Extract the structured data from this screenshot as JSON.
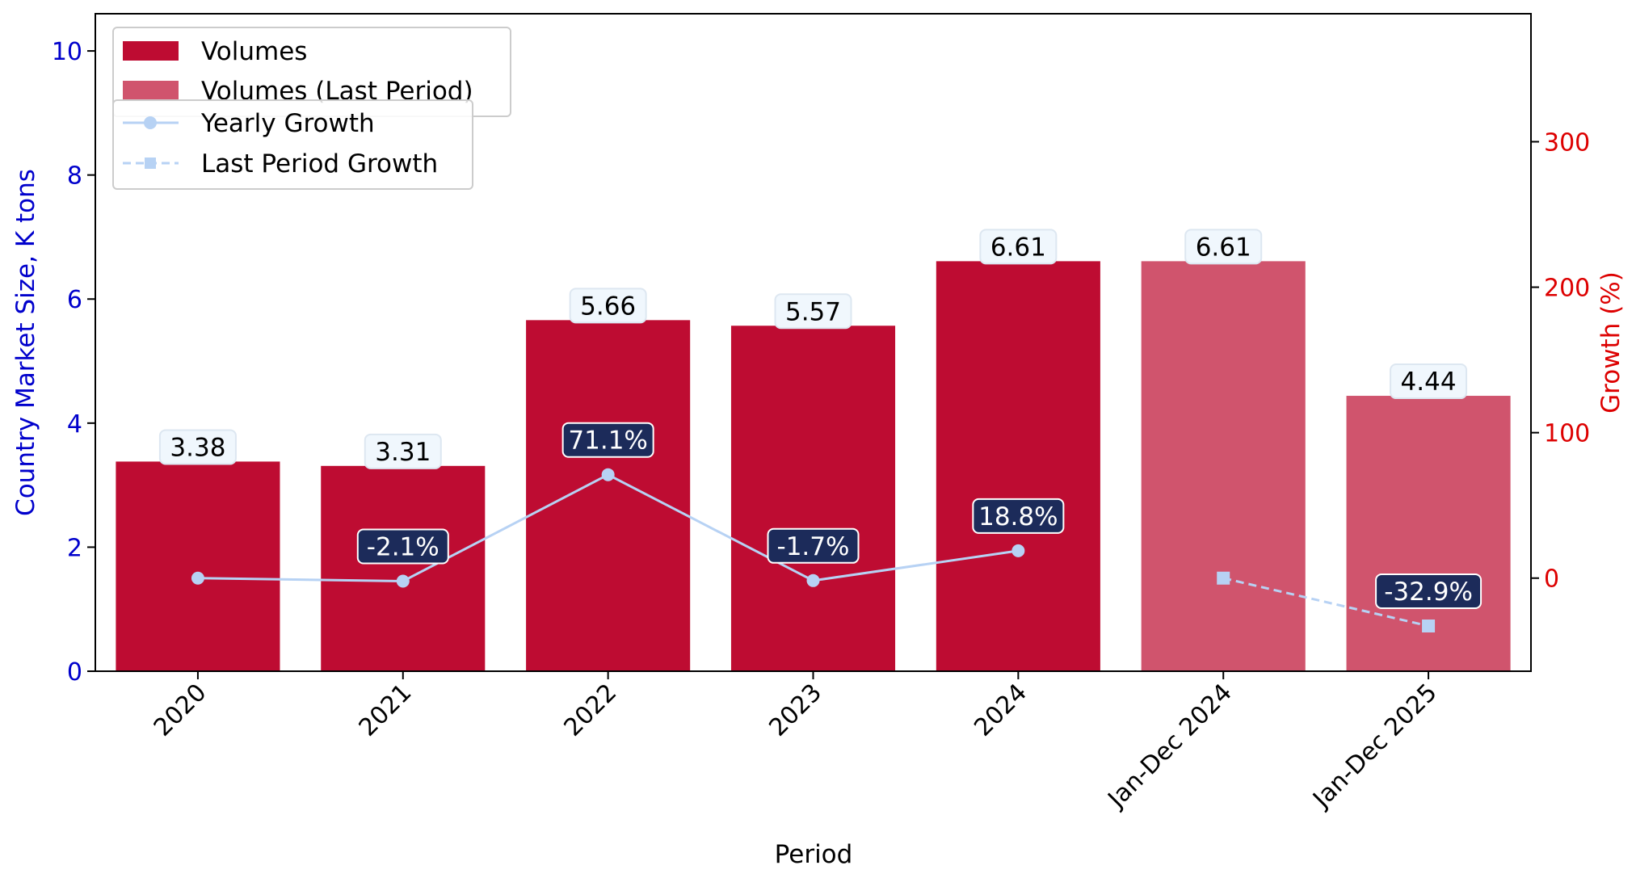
{
  "chart_data": {
    "type": "bar",
    "categories": [
      "2020",
      "2021",
      "2022",
      "2023",
      "2024",
      "Jan-Dec 2024",
      "Jan-Dec 2025"
    ],
    "xlabel": "Period",
    "ylabel": "Country Market Size, K tons",
    "y2label": "Growth (%)",
    "ylim": [
      0,
      10.6
    ],
    "y2lim": [
      -64,
      388
    ],
    "yticks": [
      0,
      2,
      4,
      6,
      8,
      10
    ],
    "y2ticks": [
      0,
      100,
      200,
      300
    ],
    "grid": false,
    "legend_placement": "top-left",
    "series": [
      {
        "name": "Volumes",
        "kind": "bar",
        "color": "#be0c32",
        "values": [
          3.38,
          3.31,
          5.66,
          5.57,
          6.61,
          null,
          null
        ],
        "labels": [
          "3.38",
          "3.31",
          "5.66",
          "5.57",
          "6.61",
          null,
          null
        ]
      },
      {
        "name": "Volumes (Last Period)",
        "kind": "bar",
        "color": "#d0546d",
        "values": [
          null,
          null,
          null,
          null,
          null,
          6.61,
          4.44
        ],
        "labels": [
          null,
          null,
          null,
          null,
          null,
          "6.61",
          "4.44"
        ]
      },
      {
        "name": "Yearly Growth",
        "kind": "line",
        "axis": "right",
        "color": "#b7d2f4",
        "values": [
          0,
          -2.1,
          71.1,
          -1.7,
          18.8,
          null,
          null
        ],
        "labels": [
          null,
          "-2.1%",
          "71.1%",
          "-1.7%",
          "18.8%",
          null,
          null
        ]
      },
      {
        "name": "Last Period Growth",
        "kind": "line",
        "axis": "right",
        "dashed": true,
        "color": "#b7d2f4",
        "values": [
          null,
          null,
          null,
          null,
          null,
          0,
          -32.9
        ],
        "labels": [
          null,
          null,
          null,
          null,
          null,
          null,
          "-32.9%"
        ]
      }
    ],
    "colors": {
      "left_axis": "#0000cc",
      "right_axis": "#dd0000",
      "growth_label_bg": "#1c2b5a",
      "value_label_bg": "#f0f7fd"
    }
  }
}
